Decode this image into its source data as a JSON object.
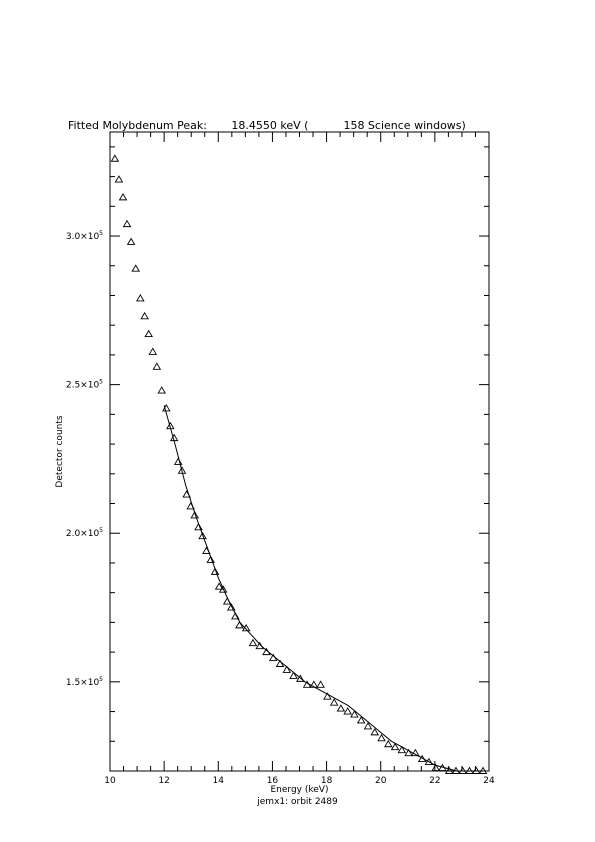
{
  "chart_data": {
    "type": "scatter",
    "title": "Fitted Molybdenum Peak:       18.4550 keV (          158 Science windows)",
    "subtitle": "jemx1: orbit 2489",
    "xlabel": "Energy (keV)",
    "ylabel": "Detector counts",
    "xlim": [
      10,
      24
    ],
    "ylim": [
      120000,
      335000
    ],
    "x_ticks": [
      10,
      12,
      14,
      16,
      18,
      20,
      22,
      24
    ],
    "y_ticks": [
      {
        "value": 150000,
        "mantissa": "1.5×10",
        "exp": "5"
      },
      {
        "value": 200000,
        "mantissa": "2.0×10",
        "exp": "5"
      },
      {
        "value": 250000,
        "mantissa": "2.5×10",
        "exp": "5"
      },
      {
        "value": 300000,
        "mantissa": "3.0×10",
        "exp": "5"
      }
    ],
    "grid": false,
    "series": [
      {
        "marker": "triangle",
        "x": [
          10.18,
          10.33,
          10.48,
          10.63,
          10.78,
          10.95,
          11.12,
          11.28,
          11.43,
          11.58,
          11.73,
          11.91,
          12.08,
          12.23,
          12.37,
          12.52,
          12.66,
          12.83,
          12.98,
          13.13,
          13.27,
          13.42,
          13.56,
          13.72,
          13.88,
          14.03,
          14.18,
          14.33,
          14.48,
          14.63,
          14.78,
          15.03,
          15.28,
          15.53,
          15.78,
          16.03,
          16.28,
          16.53,
          16.78,
          17.03,
          17.28,
          17.53,
          17.78,
          18.03,
          18.28,
          18.53,
          18.78,
          19.03,
          19.28,
          19.53,
          19.78,
          20.03,
          20.28,
          20.53,
          20.78,
          21.03,
          21.28,
          21.53,
          21.78,
          22.03,
          22.28,
          22.53,
          22.78,
          23.03,
          23.28,
          23.53,
          23.78
        ],
        "y": [
          326000,
          319000,
          313000,
          304000,
          298000,
          289000,
          279000,
          273000,
          267000,
          261000,
          256000,
          248000,
          242000,
          236000,
          232000,
          224000,
          221000,
          213000,
          209000,
          206000,
          202000,
          199000,
          194000,
          191000,
          187000,
          182000,
          181000,
          177000,
          175000,
          172000,
          169000,
          168000,
          163000,
          162000,
          160000,
          158000,
          156000,
          154000,
          152000,
          151000,
          149000,
          149000,
          149000,
          145000,
          143000,
          141000,
          140000,
          139000,
          137000,
          135000,
          133000,
          131000,
          129000,
          128000,
          127000,
          126000,
          126000,
          124000,
          123000,
          121000,
          121000,
          120000,
          120000,
          120000,
          120000,
          120000,
          120000
        ]
      },
      {
        "marker": "line",
        "x": [
          12.0,
          12.4,
          12.8,
          13.2,
          13.6,
          14.0,
          14.4,
          14.8,
          15.2,
          15.6,
          16.0,
          16.4,
          16.8,
          17.2,
          17.6,
          18.0,
          18.4,
          18.8,
          19.2,
          19.6,
          20.0,
          20.4,
          20.8,
          21.2,
          21.6,
          22.0,
          22.4,
          22.8,
          23.2,
          23.6,
          24.0
        ],
        "y": [
          243000,
          230000,
          216000,
          205000,
          195000,
          185000,
          177000,
          170000,
          166000,
          162000,
          159000,
          156000,
          153000,
          150000,
          148000,
          146000,
          144000,
          142000,
          139000,
          136000,
          133000,
          130000,
          128000,
          126000,
          124000,
          122000,
          121000,
          120000,
          120000,
          120000,
          120000
        ]
      }
    ]
  }
}
